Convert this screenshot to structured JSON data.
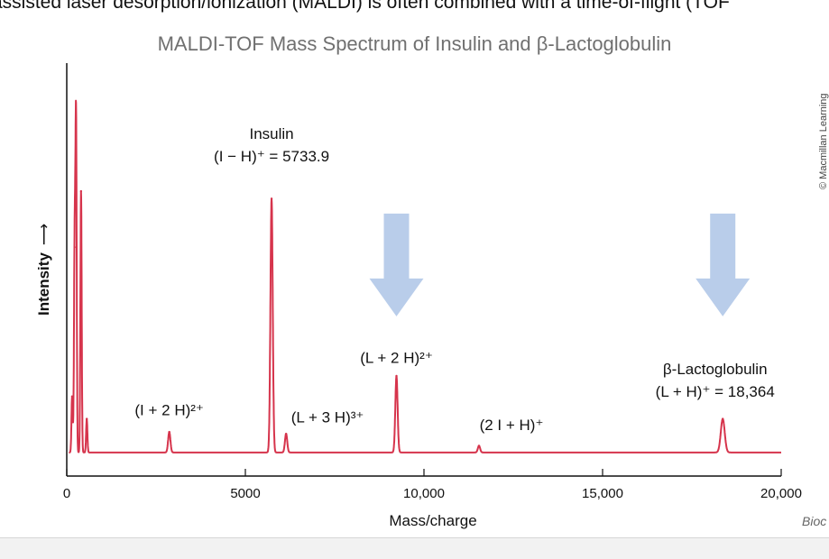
{
  "header": {
    "top_text": "-assisted laser desorption/ionization (MALDI) is often combined with a time-of-flight (TOF"
  },
  "credit": "© Macmillan Learning",
  "book_tag": "Bioc",
  "colors": {
    "trace": "#d6344c",
    "arrow": "#b9cdea",
    "axis": "#111111",
    "title": "#707070"
  },
  "chart_data": {
    "type": "line",
    "title": "MALDI-TOF Mass Spectrum of Insulin and β-Lactoglobulin",
    "xlabel": "Mass/charge",
    "ylabel": "Intensity",
    "xlim": [
      0,
      20000
    ],
    "ylim": [
      0,
      1
    ],
    "xticks": [
      0,
      5000,
      10000,
      15000,
      20000
    ],
    "xtick_labels": [
      "0",
      "5000",
      "10,000",
      "15,000",
      "20,000"
    ],
    "grid": false,
    "baseline": 0.01,
    "series": [
      {
        "peaks": [
          {
            "x": 150,
            "y": 0.16
          },
          {
            "x": 220,
            "y": 0.56
          },
          {
            "x": 260,
            "y": 0.9
          },
          {
            "x": 400,
            "y": 0.71
          },
          {
            "x": 560,
            "y": 0.1
          },
          {
            "x": 2870,
            "y": 0.065
          },
          {
            "x": 5734,
            "y": 0.69
          },
          {
            "x": 6140,
            "y": 0.06
          },
          {
            "x": 9230,
            "y": 0.215
          },
          {
            "x": 11540,
            "y": 0.028
          },
          {
            "x": 18364,
            "y": 0.1
          }
        ]
      }
    ],
    "annotations": [
      {
        "x": 2870,
        "y": 0.11,
        "lines": [
          "(I + 2 H)²⁺"
        ]
      },
      {
        "x": 5734,
        "y": 0.79,
        "lines": [
          "Insulin",
          "(I − H)⁺ = 5733.9"
        ]
      },
      {
        "x": 7300,
        "y": 0.09,
        "lines": [
          "(L + 3 H)³⁺"
        ]
      },
      {
        "x": 9230,
        "y": 0.25,
        "lines": [
          "(L + 2 H)²⁺"
        ]
      },
      {
        "x": 12450,
        "y": 0.07,
        "lines": [
          "(2 I + H)⁺"
        ]
      },
      {
        "x": 18150,
        "y": 0.16,
        "lines": [
          "β-Lactoglobulin",
          "(L + H)⁺ = 18,364"
        ]
      }
    ],
    "highlight_arrows": [
      {
        "x": 9230,
        "y": 0.65
      },
      {
        "x": 18364,
        "y": 0.65
      }
    ]
  }
}
